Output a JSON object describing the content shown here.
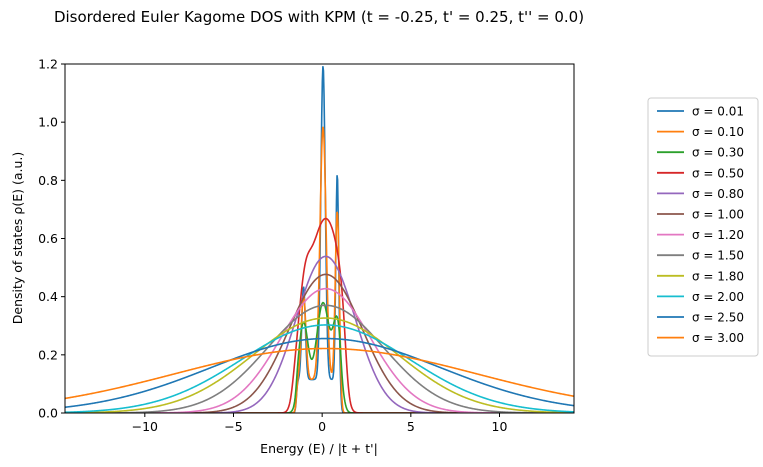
{
  "chart_data": {
    "type": "line",
    "title": "Disordered Euler Kagome DOS with KPM (t = -0.25, t' = 0.25, t'' = 0.0)",
    "xlabel": "Energy (E) / |t + t'|",
    "ylabel": "Density of states ρ(E) (a.u.)",
    "xlim": [
      -14.5,
      14.2
    ],
    "ylim": [
      0,
      1.2
    ],
    "xticks": [
      -10,
      -5,
      0,
      5,
      10
    ],
    "xtick_labels": [
      "−10",
      "−5",
      "0",
      "5",
      "10"
    ],
    "yticks": [
      0.0,
      0.2,
      0.4,
      0.6,
      0.8,
      1.0,
      1.2
    ],
    "ytick_labels": [
      "0.0",
      "0.2",
      "0.4",
      "0.6",
      "0.8",
      "1.0",
      "1.2"
    ],
    "grid": false,
    "legend_position": "outside-right",
    "series": [
      {
        "name": "σ = 0.01",
        "color": "#1f77b4",
        "sigma": 0.01
      },
      {
        "name": "σ = 0.10",
        "color": "#ff7f0e",
        "sigma": 0.1
      },
      {
        "name": "σ = 0.30",
        "color": "#2ca02c",
        "sigma": 0.3
      },
      {
        "name": "σ = 0.50",
        "color": "#d62728",
        "sigma": 0.5
      },
      {
        "name": "σ = 0.80",
        "color": "#9467bd",
        "sigma": 0.8
      },
      {
        "name": "σ = 1.00",
        "color": "#8c564b",
        "sigma": 1.0
      },
      {
        "name": "σ = 1.20",
        "color": "#e377c2",
        "sigma": 1.2
      },
      {
        "name": "σ = 1.50",
        "color": "#7f7f7f",
        "sigma": 1.5
      },
      {
        "name": "σ = 1.80",
        "color": "#bcbd22",
        "sigma": 1.8
      },
      {
        "name": "σ = 2.00",
        "color": "#17becf",
        "sigma": 2.0
      },
      {
        "name": "σ = 2.50",
        "color": "#1f77b4",
        "sigma": 2.5
      },
      {
        "name": "σ = 3.00",
        "color": "#ff7f0e",
        "sigma": 3.0
      }
    ]
  }
}
